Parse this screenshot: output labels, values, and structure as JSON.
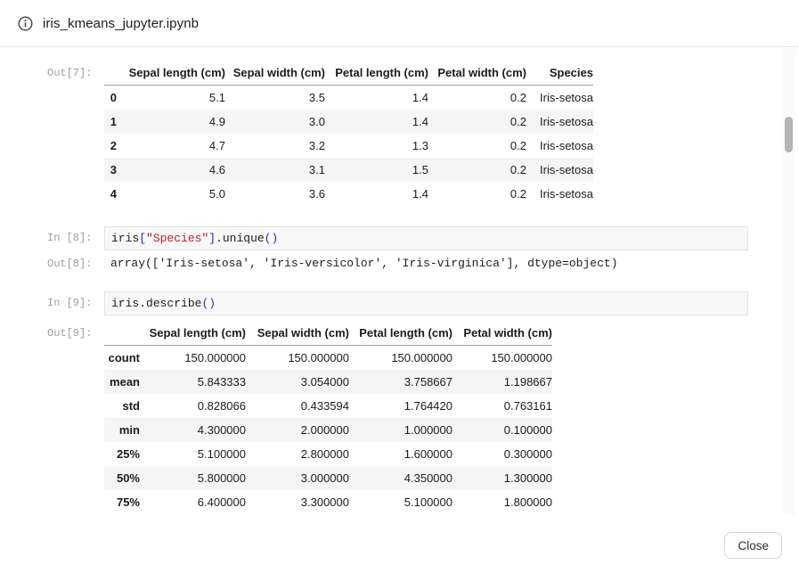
{
  "header": {
    "title": "iris_kmeans_jupyter.ipynb"
  },
  "cells": {
    "out7": {
      "prompt": "Out[7]:",
      "table": {
        "columns": [
          "Sepal length (cm)",
          "Sepal width (cm)",
          "Petal length (cm)",
          "Petal width (cm)",
          "Species"
        ],
        "rows": [
          {
            "index": "0",
            "values": [
              "5.1",
              "3.5",
              "1.4",
              "0.2",
              "Iris-setosa"
            ]
          },
          {
            "index": "1",
            "values": [
              "4.9",
              "3.0",
              "1.4",
              "0.2",
              "Iris-setosa"
            ]
          },
          {
            "index": "2",
            "values": [
              "4.7",
              "3.2",
              "1.3",
              "0.2",
              "Iris-setosa"
            ]
          },
          {
            "index": "3",
            "values": [
              "4.6",
              "3.1",
              "1.5",
              "0.2",
              "Iris-setosa"
            ]
          },
          {
            "index": "4",
            "values": [
              "5.0",
              "3.6",
              "1.4",
              "0.2",
              "Iris-setosa"
            ]
          }
        ]
      }
    },
    "in8": {
      "prompt": "In [8]:",
      "code": [
        {
          "t": "iris",
          "c": "name"
        },
        {
          "t": "[",
          "c": "punct"
        },
        {
          "t": "\"Species\"",
          "c": "string"
        },
        {
          "t": "]",
          "c": "punct"
        },
        {
          "t": ".unique",
          "c": "name"
        },
        {
          "t": "()",
          "c": "punct"
        }
      ]
    },
    "out8": {
      "prompt": "Out[8]:",
      "text": "array(['Iris-setosa', 'Iris-versicolor', 'Iris-virginica'], dtype=object)"
    },
    "in9": {
      "prompt": "In [9]:",
      "code": [
        {
          "t": "iris",
          "c": "name"
        },
        {
          "t": ".describe",
          "c": "name"
        },
        {
          "t": "()",
          "c": "punct"
        }
      ]
    },
    "out9": {
      "prompt": "Out[9]:",
      "table": {
        "columns": [
          "Sepal length (cm)",
          "Sepal width (cm)",
          "Petal length (cm)",
          "Petal width (cm)"
        ],
        "rows": [
          {
            "index": "count",
            "values": [
              "150.000000",
              "150.000000",
              "150.000000",
              "150.000000"
            ]
          },
          {
            "index": "mean",
            "values": [
              "5.843333",
              "3.054000",
              "3.758667",
              "1.198667"
            ]
          },
          {
            "index": "std",
            "values": [
              "0.828066",
              "0.433594",
              "1.764420",
              "0.763161"
            ]
          },
          {
            "index": "min",
            "values": [
              "4.300000",
              "2.000000",
              "1.000000",
              "0.100000"
            ]
          },
          {
            "index": "25%",
            "values": [
              "5.100000",
              "2.800000",
              "1.600000",
              "0.300000"
            ]
          },
          {
            "index": "50%",
            "values": [
              "5.800000",
              "3.000000",
              "4.350000",
              "1.300000"
            ]
          },
          {
            "index": "75%",
            "values": [
              "6.400000",
              "3.300000",
              "5.100000",
              "1.800000"
            ]
          }
        ]
      }
    }
  },
  "footer": {
    "close_label": "Close"
  },
  "colors": {
    "string_token": "#ba2121",
    "bracket_token": "#2d2dbf",
    "prompt_label": "#9d9d9d",
    "zebra_row": "#f5f5f5",
    "code_cell_bg": "#f8f8f8",
    "header_divider": "#e8e8e8",
    "table_header_rule": "#9c9c9c"
  }
}
